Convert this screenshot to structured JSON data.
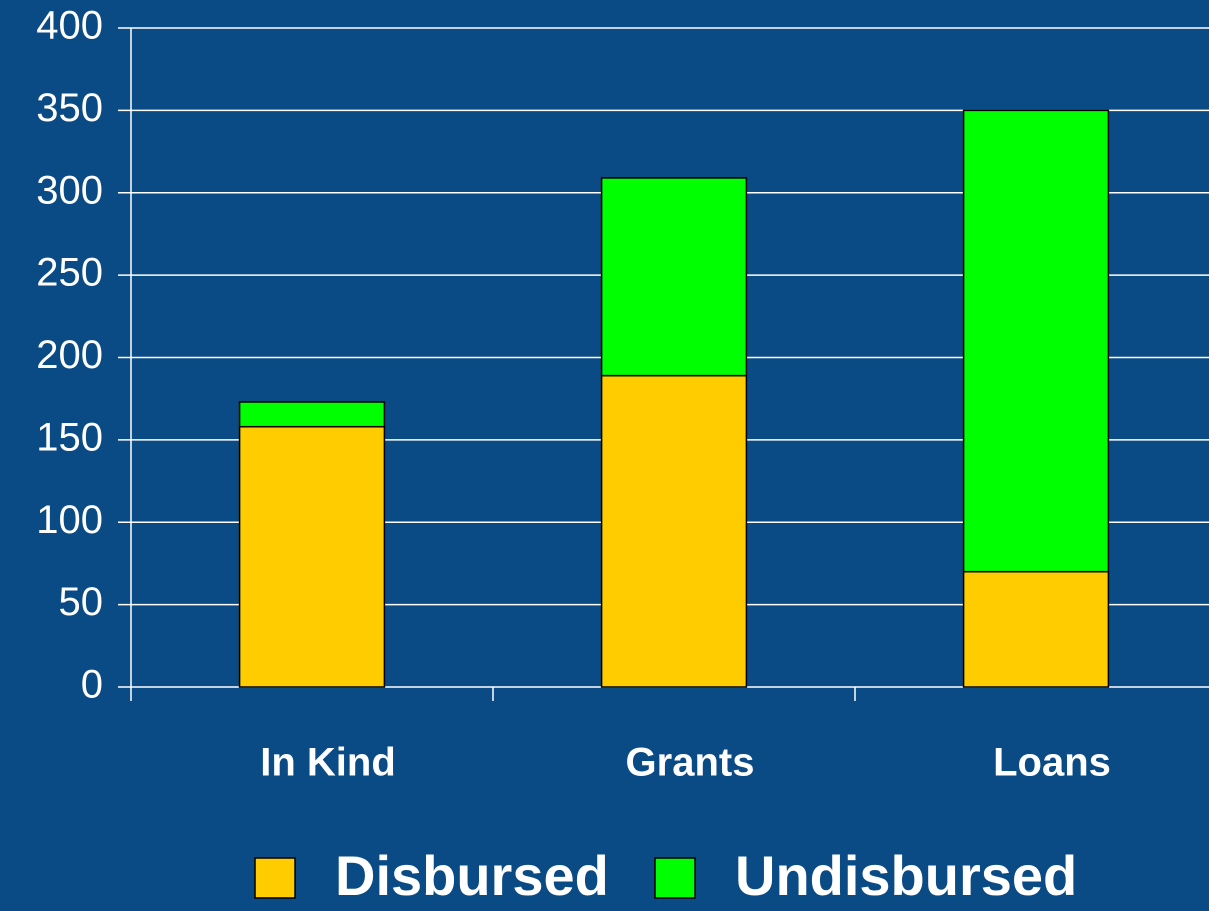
{
  "chart_data": {
    "type": "stacked_bar",
    "categories": [
      "In Kind",
      "Grants",
      "Loans"
    ],
    "series": [
      {
        "name": "Disbursed",
        "color": "#ffcc00",
        "values": [
          158,
          189,
          70
        ]
      },
      {
        "name": "Undisbursed",
        "color": "#00ff00",
        "values": [
          15,
          120,
          280
        ]
      }
    ],
    "ylim": [
      0,
      400
    ],
    "yticks": [
      0,
      50,
      100,
      150,
      200,
      250,
      300,
      350,
      400
    ],
    "grid": true
  }
}
